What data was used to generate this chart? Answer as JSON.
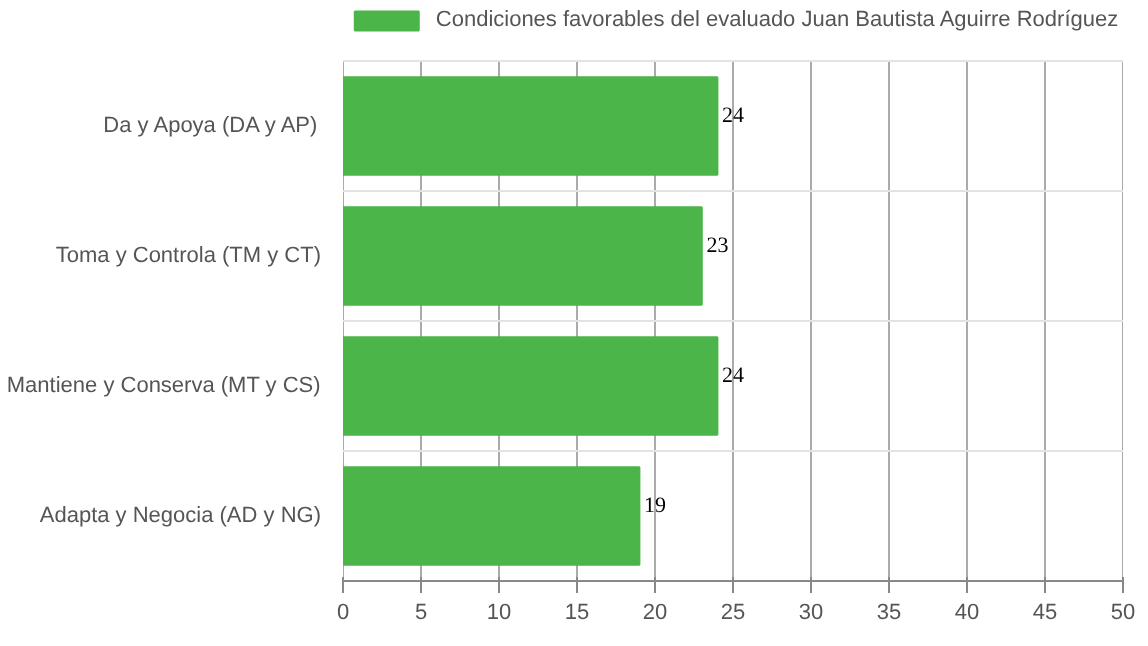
{
  "chart_data": {
    "type": "bar",
    "orientation": "horizontal",
    "categories": [
      "Da y Apoya (DA y AP)",
      "Toma y Controla (TM y CT)",
      "Mantiene y Conserva (MT y CS)",
      "Adapta y Negocia (AD y NG)"
    ],
    "series": [
      {
        "name": "Condiciones favorables del evaluado Juan Bautista Aguirre Rodríguez",
        "color": "#4cb54a",
        "values": [
          24,
          23,
          24,
          19
        ]
      }
    ],
    "xlim": [
      0,
      50
    ],
    "xticks": [
      0,
      5,
      10,
      15,
      20,
      25,
      30,
      35,
      40,
      45,
      50
    ],
    "grid": true,
    "legend": "top",
    "data_labels": true
  }
}
